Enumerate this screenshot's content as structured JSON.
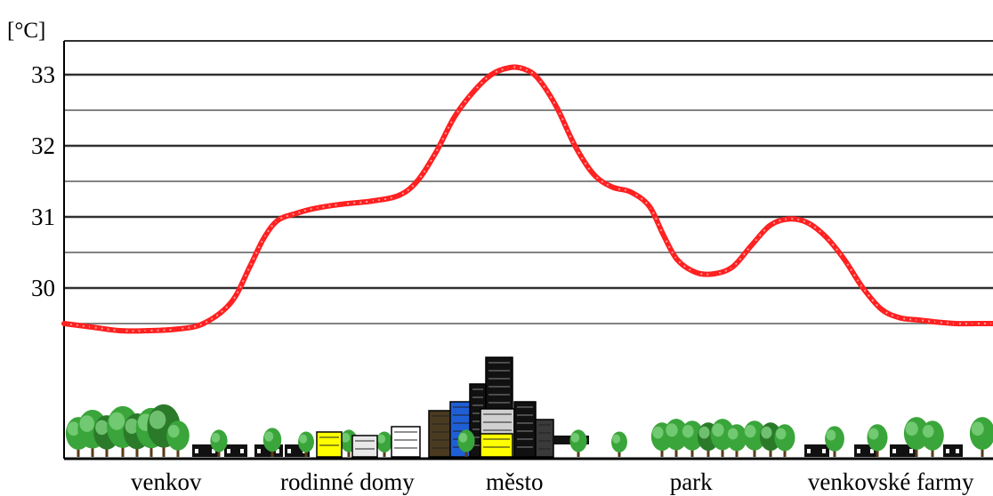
{
  "chart_data": {
    "type": "line",
    "unit": "[°C]",
    "y_ticks": [
      "33",
      "32",
      "31",
      "30"
    ],
    "ylim": [
      28.5,
      33.5
    ],
    "grid": true,
    "xlim": [
      0,
      100
    ],
    "categories": [
      "venkov",
      "rodinné domy",
      "město",
      "park",
      "venkovské farmy"
    ],
    "category_x": [
      11,
      30.5,
      48.5,
      67.5,
      89
    ],
    "series": [
      {
        "color": "#ff2020",
        "x": [
          0,
          3,
          6,
          9,
          12,
          15,
          18,
          20,
          21.5,
          23,
          25,
          27,
          30,
          33,
          36,
          38,
          40,
          42,
          44,
          46,
          48,
          49.5,
          51,
          53,
          55,
          57,
          59,
          61,
          63,
          64.5,
          66,
          68,
          70,
          72,
          74,
          76,
          78,
          80,
          82,
          84,
          86,
          88,
          90,
          92,
          94,
          96,
          98,
          100
        ],
        "y": [
          29.5,
          29.45,
          29.4,
          29.4,
          29.42,
          29.5,
          29.8,
          30.3,
          30.7,
          30.95,
          31.05,
          31.12,
          31.18,
          31.22,
          31.3,
          31.5,
          31.9,
          32.4,
          32.75,
          33.0,
          33.1,
          33.08,
          32.95,
          32.55,
          32.0,
          31.6,
          31.42,
          31.35,
          31.15,
          30.75,
          30.4,
          30.22,
          30.2,
          30.3,
          30.6,
          30.88,
          30.97,
          30.92,
          30.72,
          30.4,
          30.0,
          29.7,
          29.58,
          29.55,
          29.52,
          29.5,
          29.5,
          29.5
        ]
      }
    ],
    "colors": {
      "line": "#ff2020",
      "grid": "#404040",
      "axis": "#000000",
      "tree": "#3aa53a",
      "tree_dark": "#2a7a2a",
      "building_blue": "#1f5fd6",
      "building_yellow": "#ffff00"
    }
  }
}
